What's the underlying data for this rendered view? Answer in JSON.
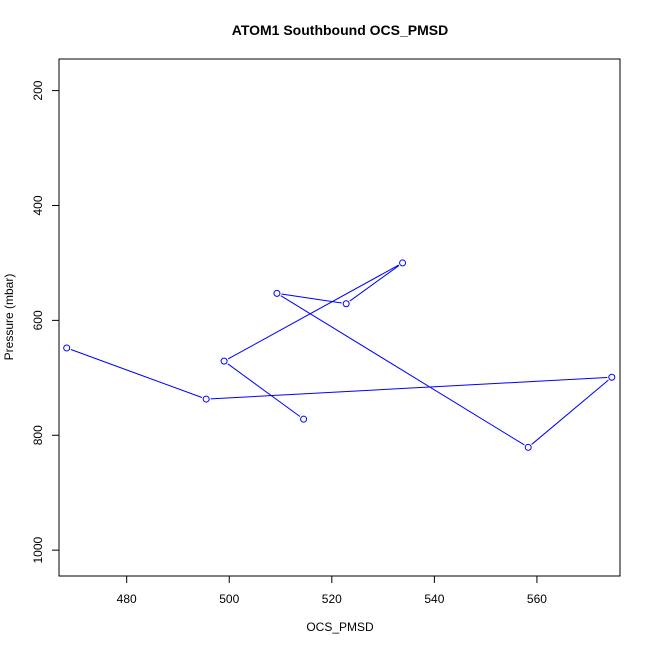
{
  "chart_data": {
    "type": "line",
    "title": "ATOM1 Southbound OCS_PMSD",
    "xlabel": "OCS_PMSD",
    "ylabel": "Pressure (mbar)",
    "xlim": [
      466.8,
      576.2
    ],
    "ylim": [
      1045,
      145
    ],
    "y_reversed": true,
    "x_ticks": [
      "480",
      "500",
      "520",
      "540",
      "560"
    ],
    "y_ticks": [
      "200",
      "400",
      "600",
      "800",
      "1000"
    ],
    "grid": false,
    "line_color": "#0000ff",
    "series": [
      {
        "marker": "open-circle",
        "points": [
          {
            "x": 514.5,
            "y": 772
          },
          {
            "x": 499,
            "y": 671
          },
          {
            "x": 533.8,
            "y": 500
          },
          {
            "x": 522.8,
            "y": 571
          },
          {
            "x": 509.3,
            "y": 553
          },
          {
            "x": 558.3,
            "y": 821
          },
          {
            "x": 574.6,
            "y": 699
          },
          {
            "x": 495.5,
            "y": 737
          },
          {
            "x": 468.3,
            "y": 648
          }
        ]
      }
    ]
  }
}
